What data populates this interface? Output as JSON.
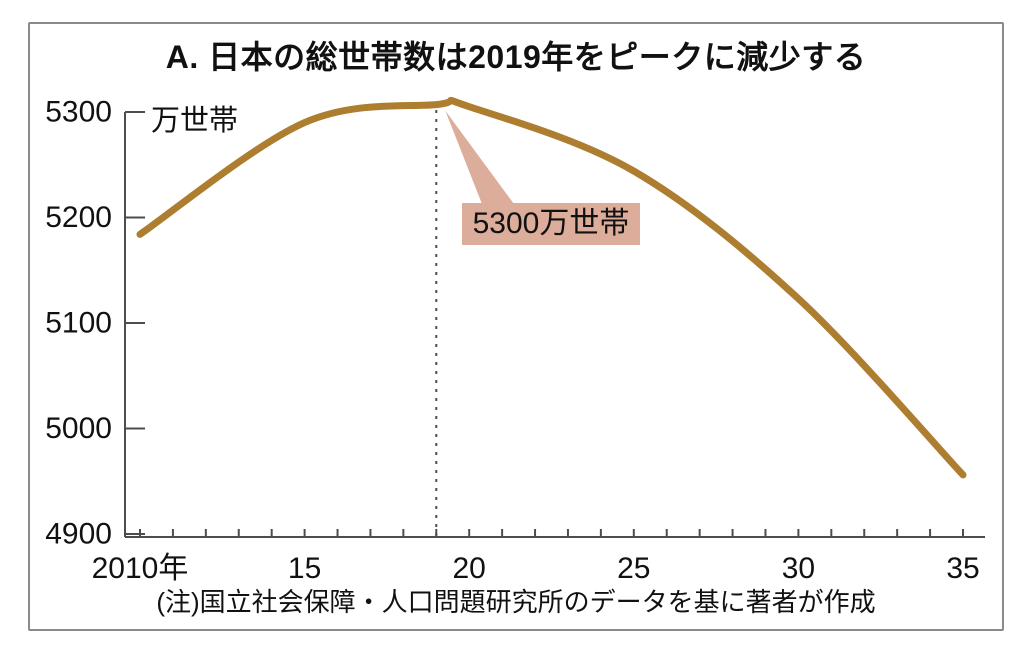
{
  "chart_data": {
    "type": "line",
    "title": "A. 日本の総世帯数は2019年をピークに減少する",
    "unit_label": "万世帯",
    "x": [
      2010,
      2015,
      2019,
      2020,
      2025,
      2030,
      2035
    ],
    "values": [
      5184,
      5290,
      5307,
      5305,
      5244,
      5123,
      4956
    ],
    "x_ticks": [
      {
        "year": 2010,
        "label": "2010年"
      },
      {
        "year": 2015,
        "label": "15"
      },
      {
        "year": 2020,
        "label": "20"
      },
      {
        "year": 2025,
        "label": "25"
      },
      {
        "year": 2030,
        "label": "30"
      },
      {
        "year": 2035,
        "label": "35"
      }
    ],
    "x_minor_tick_step": 1,
    "y_ticks": [
      4900,
      5000,
      5100,
      5200,
      5300
    ],
    "xlim": [
      2010,
      2035
    ],
    "ylim": [
      4900,
      5300
    ],
    "grid": false,
    "legend": "none",
    "peak": {
      "year": 2019,
      "value": 5307,
      "annotation": "5300万世帯"
    },
    "source": "(注)国立社会保障・人口問題研究所のデータを基に著者が作成"
  },
  "colors": {
    "line": "#ad7e2f",
    "annotation_bg": "#ddad9b",
    "axis": "#4d4d4d",
    "dashed_line": "#4d4d4d",
    "text": "#111111",
    "panel_border": "#8a8a8a"
  }
}
